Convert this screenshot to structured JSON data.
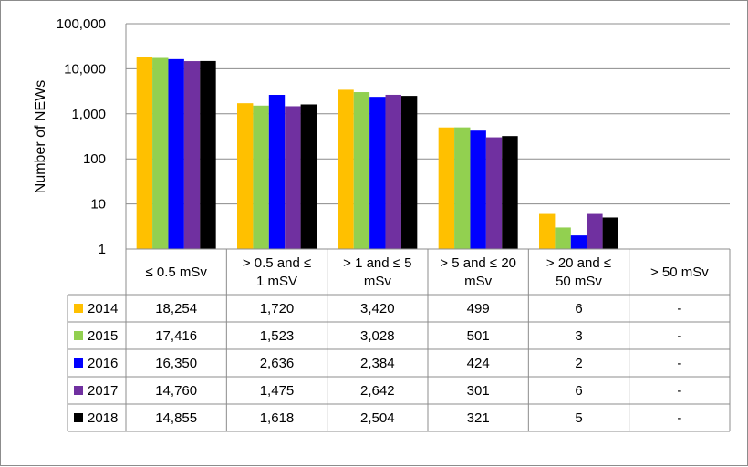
{
  "chart_data": {
    "type": "bar",
    "title": "",
    "ylabel": "Number of NEWs",
    "xlabel": "",
    "yscale": "log",
    "ylim": [
      1,
      100000
    ],
    "yticks": [
      "1",
      "10",
      "100",
      "1,000",
      "10,000",
      "100,000"
    ],
    "ytick_values": [
      1,
      10,
      100,
      1000,
      10000,
      100000
    ],
    "grid": true,
    "legend": "data-table",
    "categories": [
      [
        "≤ 0.5 mSv"
      ],
      [
        "> 0.5 and ≤",
        "1 mSV"
      ],
      [
        "> 1 and ≤ 5",
        "mSv"
      ],
      [
        "> 5 and ≤ 20",
        "mSv"
      ],
      [
        "> 20 and ≤",
        "50 mSv"
      ],
      [
        "> 50 mSv"
      ]
    ],
    "series": [
      {
        "name": "2014",
        "color": "#FFC000",
        "values": [
          18254,
          1720,
          3420,
          499,
          6,
          null
        ],
        "labels": [
          "18,254",
          "1,720",
          "3,420",
          "499",
          "6",
          "-"
        ]
      },
      {
        "name": "2015",
        "color": "#92D050",
        "values": [
          17416,
          1523,
          3028,
          501,
          3,
          null
        ],
        "labels": [
          "17,416",
          "1,523",
          "3,028",
          "501",
          "3",
          "-"
        ]
      },
      {
        "name": "2016",
        "color": "#0000FF",
        "values": [
          16350,
          2636,
          2384,
          424,
          2,
          null
        ],
        "labels": [
          "16,350",
          "2,636",
          "2,384",
          "424",
          "2",
          "-"
        ]
      },
      {
        "name": "2017",
        "color": "#7030A0",
        "values": [
          14760,
          1475,
          2642,
          301,
          6,
          null
        ],
        "labels": [
          "14,760",
          "1,475",
          "2,642",
          "301",
          "6",
          "-"
        ]
      },
      {
        "name": "2018",
        "color": "#000000",
        "values": [
          14855,
          1618,
          2504,
          321,
          5,
          null
        ],
        "labels": [
          "14,855",
          "1,618",
          "2,504",
          "321",
          "5",
          "-"
        ]
      }
    ]
  }
}
